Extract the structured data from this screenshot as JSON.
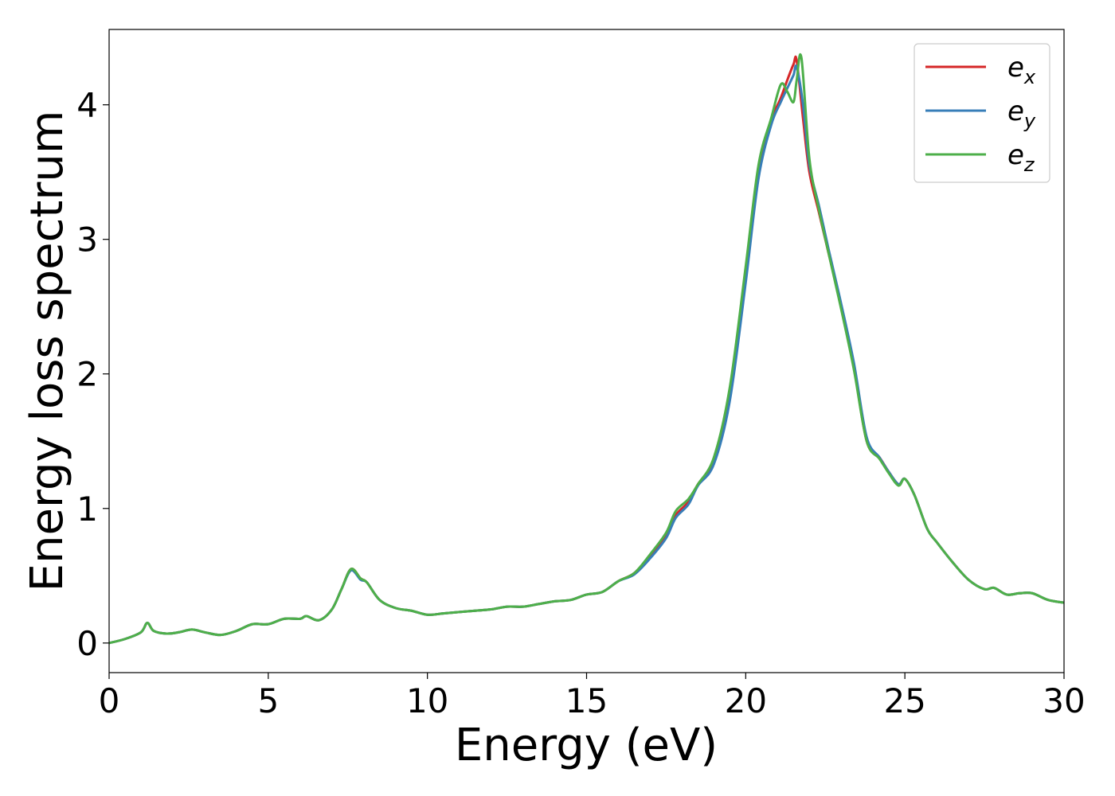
{
  "chart_data": {
    "type": "line",
    "title": "",
    "xlabel": "Energy (eV)",
    "ylabel": "Energy loss spectrum",
    "xlim": [
      0,
      30
    ],
    "ylim": [
      -0.22,
      4.56
    ],
    "xticks": [
      0,
      5,
      10,
      15,
      20,
      25,
      30
    ],
    "xtick_labels": [
      "0",
      "5",
      "10",
      "15",
      "20",
      "25",
      "30"
    ],
    "yticks": [
      0,
      1,
      2,
      3,
      4
    ],
    "ytick_labels": [
      "0",
      "1",
      "2",
      "3",
      "4"
    ],
    "grid": false,
    "legend_position": "top-right",
    "series": [
      {
        "name": "e_x",
        "legend_base": "e",
        "legend_sub": "x",
        "color": "#d62728",
        "x": [
          0,
          0.5,
          1.0,
          1.2,
          1.4,
          1.8,
          2.2,
          2.6,
          3.0,
          3.5,
          4.0,
          4.5,
          5.0,
          5.5,
          6.0,
          6.2,
          6.6,
          7.0,
          7.3,
          7.6,
          7.9,
          8.1,
          8.5,
          9.0,
          9.5,
          10.0,
          10.5,
          11.0,
          11.5,
          12.0,
          12.5,
          13.0,
          13.5,
          14.0,
          14.5,
          15.0,
          15.5,
          16.0,
          16.5,
          17.0,
          17.5,
          17.8,
          18.2,
          18.5,
          19.0,
          19.5,
          20.0,
          20.4,
          20.8,
          21.1,
          21.3,
          21.5,
          21.6,
          21.8,
          22.0,
          22.3,
          22.6,
          23.0,
          23.4,
          23.8,
          24.2,
          24.5,
          24.8,
          25.0,
          25.3,
          25.7,
          26.0,
          26.5,
          27.0,
          27.5,
          27.8,
          28.2,
          28.6,
          29.0,
          29.5,
          30.0
        ],
        "y": [
          0.0,
          0.03,
          0.08,
          0.15,
          0.09,
          0.07,
          0.08,
          0.1,
          0.08,
          0.06,
          0.09,
          0.14,
          0.14,
          0.18,
          0.18,
          0.2,
          0.17,
          0.25,
          0.4,
          0.55,
          0.48,
          0.45,
          0.32,
          0.26,
          0.24,
          0.21,
          0.22,
          0.23,
          0.24,
          0.25,
          0.27,
          0.27,
          0.29,
          0.31,
          0.32,
          0.36,
          0.38,
          0.46,
          0.52,
          0.65,
          0.8,
          0.95,
          1.05,
          1.18,
          1.35,
          1.85,
          2.75,
          3.5,
          3.88,
          4.05,
          4.18,
          4.3,
          4.33,
          3.9,
          3.5,
          3.2,
          2.9,
          2.5,
          2.05,
          1.5,
          1.38,
          1.27,
          1.18,
          1.22,
          1.1,
          0.85,
          0.75,
          0.6,
          0.47,
          0.4,
          0.41,
          0.36,
          0.37,
          0.37,
          0.32,
          0.3
        ]
      },
      {
        "name": "e_y",
        "legend_base": "e",
        "legend_sub": "y",
        "color": "#377eb8",
        "x": [
          0,
          0.5,
          1.0,
          1.2,
          1.4,
          1.8,
          2.2,
          2.6,
          3.0,
          3.5,
          4.0,
          4.5,
          5.0,
          5.5,
          6.0,
          6.2,
          6.6,
          7.0,
          7.3,
          7.6,
          7.9,
          8.1,
          8.5,
          9.0,
          9.5,
          10.0,
          10.5,
          11.0,
          11.5,
          12.0,
          12.5,
          13.0,
          13.5,
          14.0,
          14.5,
          15.0,
          15.5,
          16.0,
          16.5,
          17.0,
          17.5,
          17.8,
          18.2,
          18.5,
          19.0,
          19.5,
          20.0,
          20.4,
          20.8,
          21.1,
          21.3,
          21.5,
          21.6,
          21.8,
          22.0,
          22.3,
          22.6,
          23.0,
          23.4,
          23.8,
          24.2,
          24.5,
          24.8,
          25.0,
          25.3,
          25.7,
          26.0,
          26.5,
          27.0,
          27.5,
          27.8,
          28.2,
          28.6,
          29.0,
          29.5,
          30.0
        ],
        "y": [
          0.0,
          0.03,
          0.08,
          0.15,
          0.09,
          0.07,
          0.08,
          0.1,
          0.08,
          0.06,
          0.09,
          0.14,
          0.14,
          0.18,
          0.18,
          0.2,
          0.17,
          0.25,
          0.4,
          0.54,
          0.47,
          0.45,
          0.32,
          0.26,
          0.24,
          0.21,
          0.22,
          0.23,
          0.24,
          0.25,
          0.27,
          0.27,
          0.29,
          0.31,
          0.32,
          0.36,
          0.38,
          0.46,
          0.51,
          0.63,
          0.78,
          0.93,
          1.03,
          1.17,
          1.33,
          1.8,
          2.68,
          3.45,
          3.85,
          4.02,
          4.12,
          4.22,
          4.28,
          4.0,
          3.55,
          3.25,
          2.93,
          2.52,
          2.08,
          1.53,
          1.38,
          1.27,
          1.18,
          1.22,
          1.1,
          0.85,
          0.75,
          0.6,
          0.47,
          0.4,
          0.41,
          0.36,
          0.37,
          0.37,
          0.32,
          0.3
        ]
      },
      {
        "name": "e_z",
        "legend_base": "e",
        "legend_sub": "z",
        "color": "#4daf4a",
        "x": [
          0,
          0.5,
          1.0,
          1.2,
          1.4,
          1.8,
          2.2,
          2.6,
          3.0,
          3.5,
          4.0,
          4.5,
          5.0,
          5.5,
          6.0,
          6.2,
          6.6,
          7.0,
          7.3,
          7.6,
          7.9,
          8.1,
          8.5,
          9.0,
          9.5,
          10.0,
          10.5,
          11.0,
          11.5,
          12.0,
          12.5,
          13.0,
          13.5,
          14.0,
          14.5,
          15.0,
          15.5,
          16.0,
          16.5,
          17.0,
          17.5,
          17.8,
          18.2,
          18.5,
          19.0,
          19.5,
          20.0,
          20.4,
          20.8,
          21.1,
          21.3,
          21.5,
          21.6,
          21.75,
          22.0,
          22.3,
          22.6,
          23.0,
          23.4,
          23.8,
          24.2,
          24.5,
          24.8,
          25.0,
          25.3,
          25.7,
          26.0,
          26.5,
          27.0,
          27.5,
          27.8,
          28.2,
          28.6,
          29.0,
          29.5,
          30.0
        ],
        "y": [
          0.0,
          0.03,
          0.08,
          0.15,
          0.09,
          0.07,
          0.08,
          0.1,
          0.08,
          0.06,
          0.09,
          0.14,
          0.14,
          0.18,
          0.18,
          0.2,
          0.17,
          0.25,
          0.4,
          0.55,
          0.48,
          0.45,
          0.32,
          0.26,
          0.24,
          0.21,
          0.22,
          0.23,
          0.24,
          0.25,
          0.27,
          0.27,
          0.29,
          0.31,
          0.32,
          0.36,
          0.38,
          0.46,
          0.52,
          0.66,
          0.82,
          0.98,
          1.07,
          1.18,
          1.38,
          1.9,
          2.8,
          3.55,
          3.9,
          4.15,
          4.1,
          4.02,
          4.18,
          4.35,
          3.6,
          3.22,
          2.9,
          2.48,
          2.03,
          1.5,
          1.37,
          1.26,
          1.17,
          1.22,
          1.1,
          0.85,
          0.75,
          0.6,
          0.47,
          0.4,
          0.41,
          0.36,
          0.37,
          0.37,
          0.32,
          0.3
        ]
      }
    ]
  }
}
